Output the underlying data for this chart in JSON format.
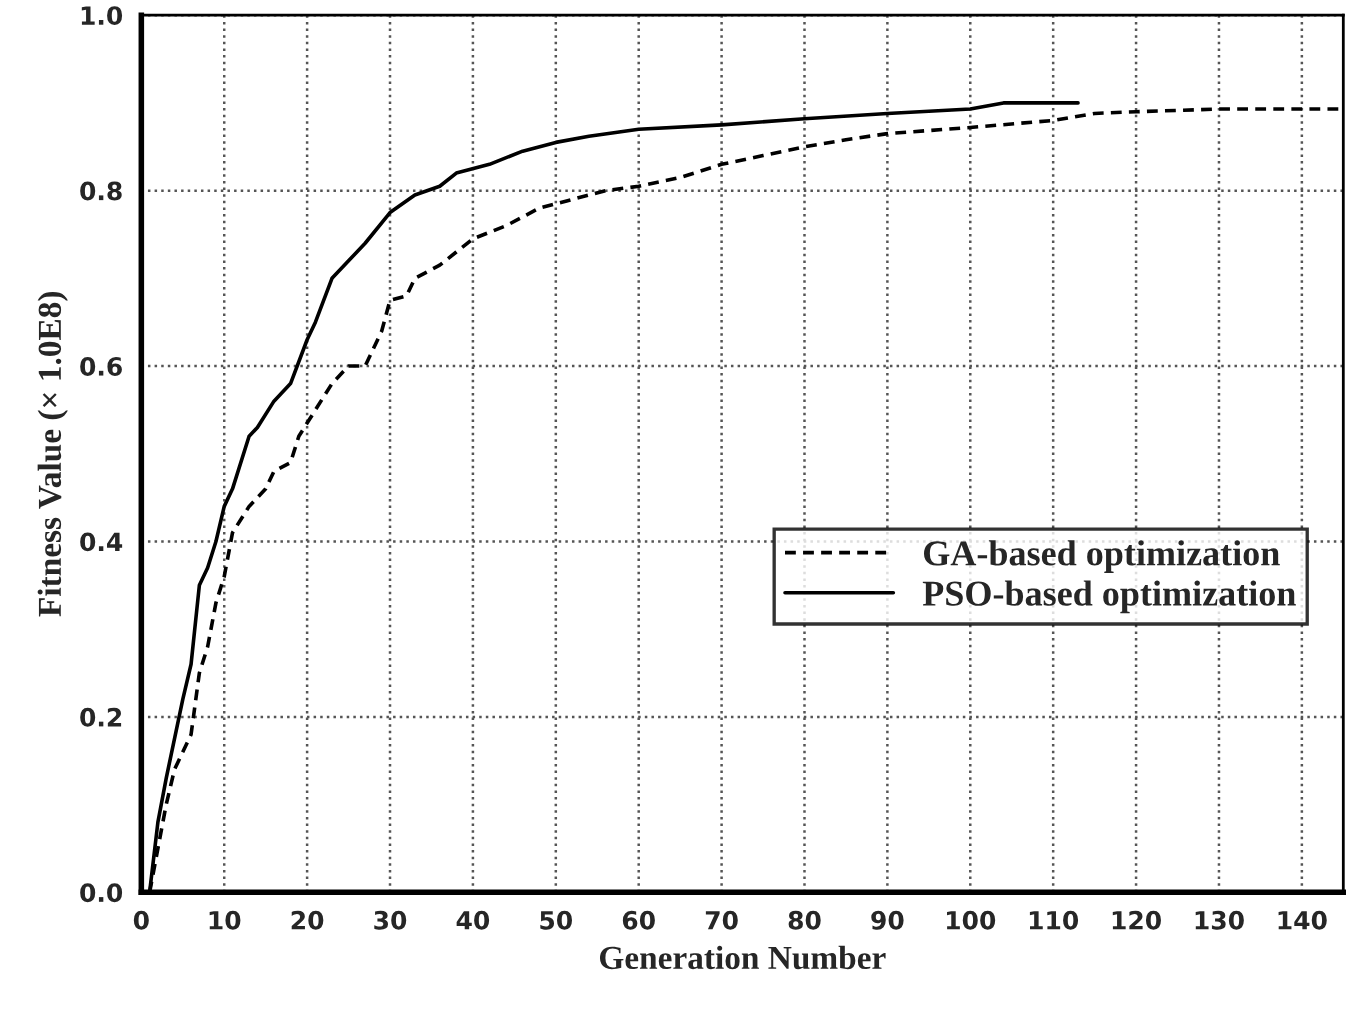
{
  "chart_data": {
    "type": "line",
    "xlabel": "Generation Number",
    "ylabel": "Fitness Value (× 1.0E8)",
    "xlim": [
      0,
      145
    ],
    "xticks": [
      0,
      10,
      20,
      30,
      40,
      50,
      60,
      70,
      80,
      90,
      100,
      110,
      120,
      130,
      140
    ],
    "ylim": [
      0,
      1.0
    ],
    "yticks": [
      {
        "value": 0,
        "label": "0.0"
      },
      {
        "value": 0.2,
        "label": "0.2"
      },
      {
        "value": 0.4,
        "label": "0.4"
      },
      {
        "value": 0.6,
        "label": "0.6"
      },
      {
        "value": 0.8,
        "label": "0.8"
      },
      {
        "value": 1.0,
        "label": "1.0"
      }
    ],
    "grid": true,
    "legend": "right",
    "series": [
      {
        "name": "GA-based optimization",
        "color": "#000000",
        "line_style": "dashed",
        "x": [
          1,
          2,
          3,
          4,
          5,
          6,
          7,
          8,
          9,
          10,
          11,
          13,
          15,
          16,
          18,
          19,
          21,
          23,
          25,
          27,
          29,
          30,
          32,
          33,
          36,
          38,
          40,
          44,
          48,
          52,
          56,
          60,
          65,
          70,
          75,
          80,
          85,
          90,
          100,
          110,
          115,
          120,
          130,
          145
        ],
        "values": [
          0,
          0.05,
          0.1,
          0.14,
          0.16,
          0.18,
          0.25,
          0.28,
          0.33,
          0.36,
          0.41,
          0.44,
          0.46,
          0.48,
          0.49,
          0.52,
          0.55,
          0.58,
          0.6,
          0.6,
          0.64,
          0.675,
          0.68,
          0.7,
          0.715,
          0.73,
          0.745,
          0.76,
          0.78,
          0.79,
          0.8,
          0.805,
          0.815,
          0.83,
          0.84,
          0.85,
          0.858,
          0.865,
          0.872,
          0.88,
          0.888,
          0.89,
          0.893,
          0.893
        ]
      },
      {
        "name": "PSO-based optimization",
        "color": "#000000",
        "line_style": "solid",
        "x": [
          1,
          2,
          3,
          5,
          6,
          7,
          8,
          9,
          10,
          11,
          13,
          14,
          16,
          18,
          20,
          21,
          23,
          25,
          27,
          30,
          33,
          36,
          38,
          42,
          46,
          50,
          54,
          60,
          70,
          80,
          90,
          100,
          104,
          113
        ],
        "values": [
          0,
          0.08,
          0.13,
          0.22,
          0.26,
          0.35,
          0.37,
          0.4,
          0.44,
          0.46,
          0.52,
          0.53,
          0.56,
          0.58,
          0.63,
          0.65,
          0.7,
          0.72,
          0.74,
          0.775,
          0.795,
          0.805,
          0.82,
          0.83,
          0.845,
          0.855,
          0.862,
          0.87,
          0.875,
          0.882,
          0.888,
          0.893,
          0.9,
          0.9
        ]
      }
    ]
  }
}
